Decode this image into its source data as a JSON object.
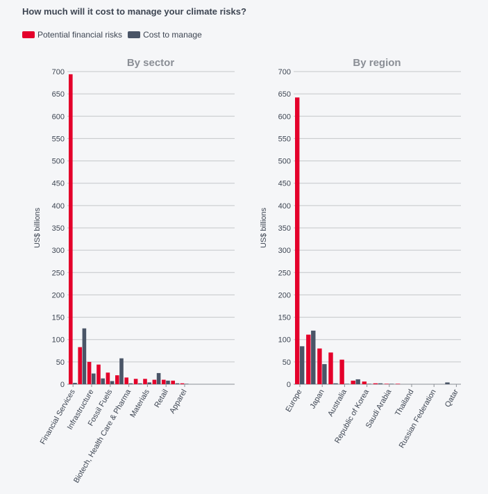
{
  "page": {
    "title": "How much will it cost to manage your climate risks?"
  },
  "legend": {
    "items": [
      {
        "label": "Potential financial risks",
        "color": "#e4002b"
      },
      {
        "label": "Cost to manage",
        "color": "#4a5567"
      }
    ]
  },
  "chart_data": [
    {
      "type": "bar",
      "title": "By sector",
      "xlabel": "",
      "ylabel": "US$ billions",
      "ylim": [
        0,
        700
      ],
      "yticks": [
        0,
        50,
        100,
        150,
        200,
        250,
        300,
        350,
        400,
        450,
        500,
        550,
        600,
        650,
        700
      ],
      "grid": true,
      "categories": [
        "Financial Services",
        "Infrastructure",
        "Fossil Fuels",
        "Biotech, Health Care & Pharma",
        "Materials",
        "Retail",
        "Apparel",
        "",
        "",
        "",
        "",
        "",
        "",
        "",
        "",
        "",
        "",
        ""
      ],
      "tick_labels": [
        "Financial Services",
        "Infrastructure",
        "Fossil Fuels",
        "Biotech, Health Care & Pharma",
        "Materials",
        "Retail",
        "Apparel"
      ],
      "series": [
        {
          "name": "Potential financial risks",
          "color": "#e4002b",
          "values": [
            694,
            83,
            50,
            44,
            26,
            20,
            15,
            12,
            12,
            10,
            10,
            8,
            2,
            0,
            0,
            0,
            0,
            0
          ]
        },
        {
          "name": "Cost to manage",
          "color": "#4a5567",
          "values": [
            3,
            125,
            24,
            13,
            7,
            58,
            2,
            2,
            4,
            25,
            8,
            2,
            1,
            0,
            0,
            0,
            0,
            0
          ]
        }
      ]
    },
    {
      "type": "bar",
      "title": "By region",
      "xlabel": "",
      "ylabel": "US$ billions",
      "ylim": [
        0,
        700
      ],
      "yticks": [
        0,
        50,
        100,
        150,
        200,
        250,
        300,
        350,
        400,
        450,
        500,
        550,
        600,
        650,
        700
      ],
      "grid": true,
      "categories": [
        "Europe",
        "",
        "Japan",
        "",
        "Australia",
        "",
        "Republic of Korea",
        "",
        "Saudi Arabia",
        "",
        "Thailand",
        "",
        "Russian Federation",
        "",
        "Qatar"
      ],
      "tick_labels": [
        "Europe",
        "Japan",
        "Australia",
        "Republic of Korea",
        "Saudi Arabia",
        "Thailand",
        "Russian Federation",
        "Qatar"
      ],
      "series": [
        {
          "name": "Potential financial risks",
          "color": "#e4002b",
          "values": [
            642,
            111,
            80,
            71,
            55,
            8,
            6,
            2,
            1,
            1,
            0,
            0,
            0,
            0,
            0
          ]
        },
        {
          "name": "Cost to manage",
          "color": "#4a5567",
          "values": [
            85,
            120,
            45,
            2,
            1,
            11,
            1,
            2,
            1,
            0,
            0,
            0,
            0,
            4,
            0
          ]
        }
      ]
    }
  ]
}
